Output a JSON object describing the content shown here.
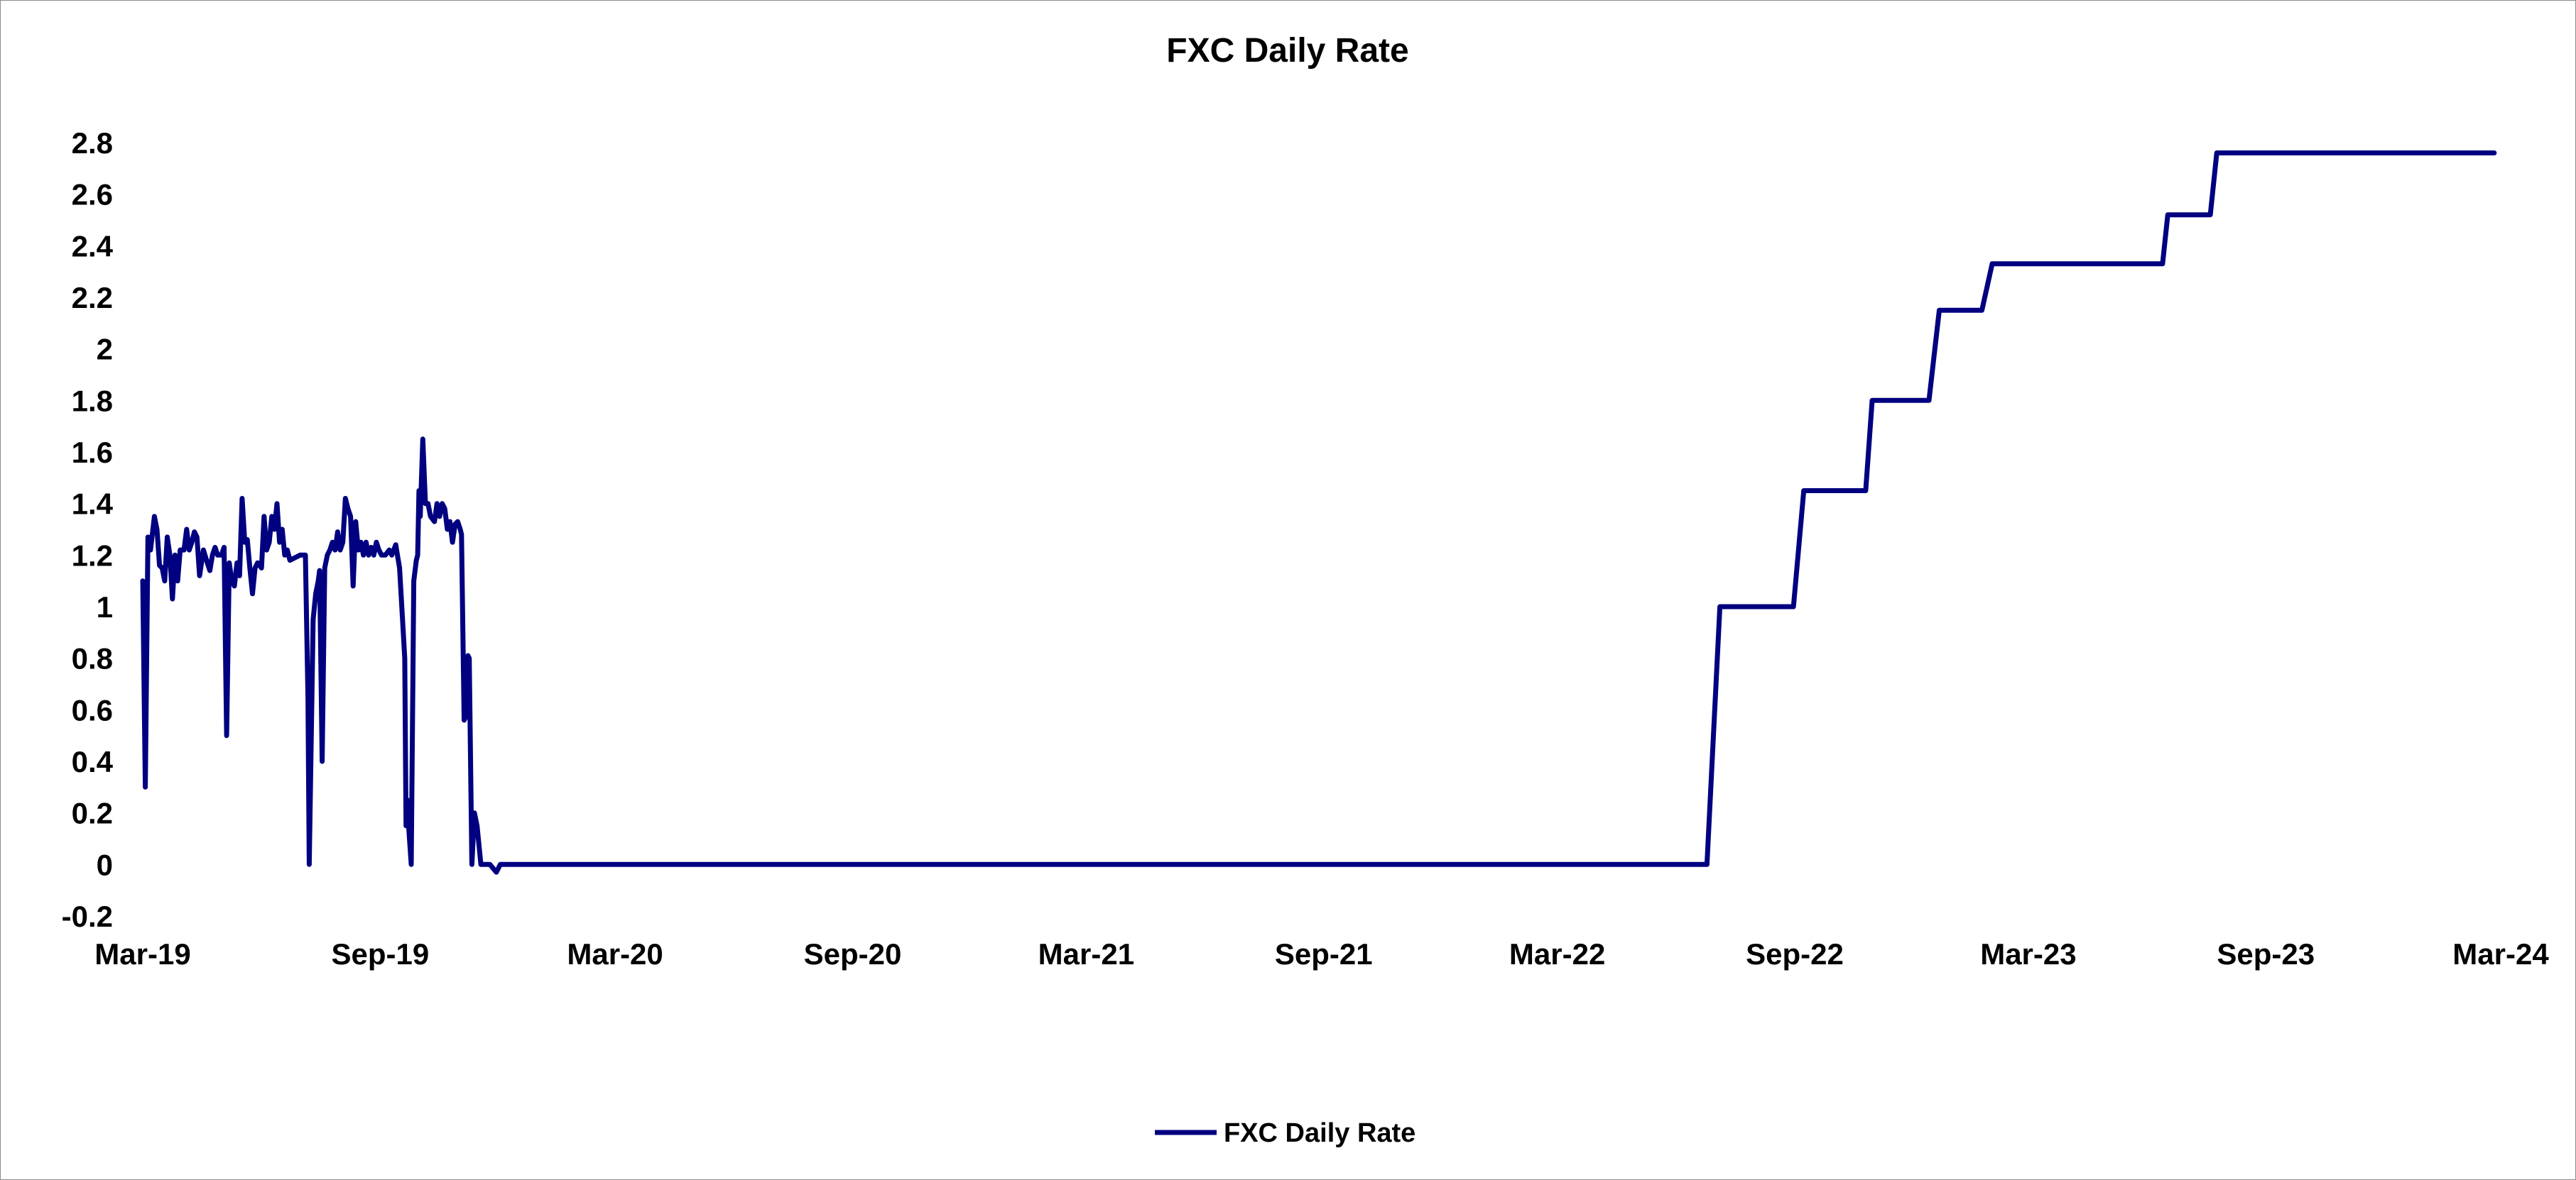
{
  "chart_data": {
    "type": "line",
    "title": "FXC Daily Rate",
    "xlabel": "",
    "ylabel": "",
    "x_axis": {
      "type": "date",
      "range": [
        "2019-03-01",
        "2024-03-01"
      ],
      "tick_labels": [
        "Mar-19",
        "Sep-19",
        "Mar-20",
        "Sep-20",
        "Mar-21",
        "Sep-21",
        "Mar-22",
        "Sep-22",
        "Mar-23",
        "Sep-23",
        "Mar-24"
      ],
      "tick_dates": [
        "2019-03-01",
        "2019-09-01",
        "2020-03-01",
        "2020-09-01",
        "2021-03-01",
        "2021-09-01",
        "2022-03-01",
        "2022-09-01",
        "2023-03-01",
        "2023-09-01",
        "2024-03-01"
      ]
    },
    "y_axis": {
      "range": [
        -0.2,
        2.8
      ],
      "tick_labels": [
        "-0.2",
        "0",
        "0.2",
        "0.4",
        "0.6",
        "0.8",
        "1",
        "1.2",
        "1.4",
        "1.6",
        "1.8",
        "2",
        "2.2",
        "2.4",
        "2.6",
        "2.8"
      ],
      "tick_values": [
        -0.2,
        0,
        0.2,
        0.4,
        0.6,
        0.8,
        1,
        1.2,
        1.4,
        1.6,
        1.8,
        2,
        2.2,
        2.4,
        2.6,
        2.8
      ]
    },
    "grid": false,
    "legend": {
      "position": "bottom-center"
    },
    "series": [
      {
        "name": "FXC Daily Rate",
        "color": "#000080",
        "points": [
          [
            "2019-03-01",
            1.1
          ],
          [
            "2019-03-03",
            0.3
          ],
          [
            "2019-03-05",
            1.27
          ],
          [
            "2019-03-07",
            1.22
          ],
          [
            "2019-03-10",
            1.35
          ],
          [
            "2019-03-12",
            1.3
          ],
          [
            "2019-03-14",
            1.16
          ],
          [
            "2019-03-16",
            1.15
          ],
          [
            "2019-03-18",
            1.1
          ],
          [
            "2019-03-20",
            1.27
          ],
          [
            "2019-03-22",
            1.2
          ],
          [
            "2019-03-24",
            1.03
          ],
          [
            "2019-03-26",
            1.2
          ],
          [
            "2019-03-28",
            1.1
          ],
          [
            "2019-03-30",
            1.22
          ],
          [
            "2019-04-02",
            1.22
          ],
          [
            "2019-04-04",
            1.3
          ],
          [
            "2019-04-06",
            1.22
          ],
          [
            "2019-04-08",
            1.25
          ],
          [
            "2019-04-10",
            1.29
          ],
          [
            "2019-04-12",
            1.27
          ],
          [
            "2019-04-14",
            1.12
          ],
          [
            "2019-04-17",
            1.22
          ],
          [
            "2019-04-20",
            1.17
          ],
          [
            "2019-04-22",
            1.14
          ],
          [
            "2019-04-24",
            1.2
          ],
          [
            "2019-04-26",
            1.23
          ],
          [
            "2019-04-28",
            1.2
          ],
          [
            "2019-05-01",
            1.2
          ],
          [
            "2019-05-03",
            1.23
          ],
          [
            "2019-05-05",
            0.5
          ],
          [
            "2019-05-07",
            1.17
          ],
          [
            "2019-05-09",
            1.1
          ],
          [
            "2019-05-11",
            1.08
          ],
          [
            "2019-05-13",
            1.17
          ],
          [
            "2019-05-15",
            1.12
          ],
          [
            "2019-05-17",
            1.42
          ],
          [
            "2019-05-19",
            1.25
          ],
          [
            "2019-05-21",
            1.26
          ],
          [
            "2019-05-23",
            1.15
          ],
          [
            "2019-05-25",
            1.05
          ],
          [
            "2019-05-27",
            1.15
          ],
          [
            "2019-05-29",
            1.17
          ],
          [
            "2019-06-01",
            1.15
          ],
          [
            "2019-06-03",
            1.35
          ],
          [
            "2019-06-05",
            1.22
          ],
          [
            "2019-06-07",
            1.25
          ],
          [
            "2019-06-09",
            1.35
          ],
          [
            "2019-06-11",
            1.3
          ],
          [
            "2019-06-13",
            1.4
          ],
          [
            "2019-06-15",
            1.25
          ],
          [
            "2019-06-17",
            1.3
          ],
          [
            "2019-06-19",
            1.2
          ],
          [
            "2019-06-21",
            1.22
          ],
          [
            "2019-06-23",
            1.18
          ],
          [
            "2019-07-01",
            1.2
          ],
          [
            "2019-07-05",
            1.2
          ],
          [
            "2019-07-07",
            0.65
          ],
          [
            "2019-07-08",
            0.0
          ],
          [
            "2019-07-11",
            0.95
          ],
          [
            "2019-07-13",
            1.05
          ],
          [
            "2019-07-15",
            1.1
          ],
          [
            "2019-07-16",
            1.14
          ],
          [
            "2019-07-18",
            0.4
          ],
          [
            "2019-07-20",
            1.15
          ],
          [
            "2019-07-22",
            1.2
          ],
          [
            "2019-07-24",
            1.22
          ],
          [
            "2019-07-26",
            1.25
          ],
          [
            "2019-07-28",
            1.22
          ],
          [
            "2019-07-30",
            1.29
          ],
          [
            "2019-08-01",
            1.22
          ],
          [
            "2019-08-03",
            1.25
          ],
          [
            "2019-08-05",
            1.42
          ],
          [
            "2019-08-07",
            1.38
          ],
          [
            "2019-08-09",
            1.35
          ],
          [
            "2019-08-11",
            1.08
          ],
          [
            "2019-08-13",
            1.33
          ],
          [
            "2019-08-15",
            1.22
          ],
          [
            "2019-08-17",
            1.25
          ],
          [
            "2019-08-19",
            1.2
          ],
          [
            "2019-08-21",
            1.25
          ],
          [
            "2019-08-23",
            1.2
          ],
          [
            "2019-08-25",
            1.23
          ],
          [
            "2019-08-27",
            1.2
          ],
          [
            "2019-08-29",
            1.25
          ],
          [
            "2019-08-31",
            1.22
          ],
          [
            "2019-09-02",
            1.2
          ],
          [
            "2019-09-05",
            1.2
          ],
          [
            "2019-09-08",
            1.22
          ],
          [
            "2019-09-10",
            1.2
          ],
          [
            "2019-09-13",
            1.24
          ],
          [
            "2019-09-16",
            1.15
          ],
          [
            "2019-09-20",
            0.8
          ],
          [
            "2019-09-21",
            0.15
          ],
          [
            "2019-09-22",
            0.25
          ],
          [
            "2019-09-23",
            0.15
          ],
          [
            "2019-09-25",
            0.0
          ],
          [
            "2019-09-27",
            1.1
          ],
          [
            "2019-09-29",
            1.18
          ],
          [
            "2019-09-30",
            1.2
          ],
          [
            "2019-10-01",
            1.45
          ],
          [
            "2019-10-02",
            1.35
          ],
          [
            "2019-10-04",
            1.65
          ],
          [
            "2019-10-06",
            1.4
          ],
          [
            "2019-10-08",
            1.4
          ],
          [
            "2019-10-10",
            1.35
          ],
          [
            "2019-10-13",
            1.33
          ],
          [
            "2019-10-15",
            1.4
          ],
          [
            "2019-10-17",
            1.35
          ],
          [
            "2019-10-19",
            1.4
          ],
          [
            "2019-10-21",
            1.38
          ],
          [
            "2019-10-23",
            1.3
          ],
          [
            "2019-10-25",
            1.33
          ],
          [
            "2019-10-27",
            1.25
          ],
          [
            "2019-10-29",
            1.32
          ],
          [
            "2019-10-31",
            1.33
          ],
          [
            "2019-11-02",
            1.3
          ],
          [
            "2019-11-03",
            1.28
          ],
          [
            "2019-11-05",
            0.56
          ],
          [
            "2019-11-07",
            0.58
          ],
          [
            "2019-11-08",
            0.81
          ],
          [
            "2019-11-09",
            0.8
          ],
          [
            "2019-11-11",
            0.0
          ],
          [
            "2019-11-13",
            0.2
          ],
          [
            "2019-11-15",
            0.15
          ],
          [
            "2019-11-18",
            0.0
          ],
          [
            "2019-11-25",
            0.0
          ],
          [
            "2019-11-30",
            -0.03
          ],
          [
            "2019-12-03",
            0.0
          ],
          [
            "2022-06-25",
            0.0
          ],
          [
            "2022-07-05",
            1.0
          ],
          [
            "2022-08-31",
            1.0
          ],
          [
            "2022-09-08",
            1.45
          ],
          [
            "2022-10-26",
            1.45
          ],
          [
            "2022-10-31",
            1.8
          ],
          [
            "2022-12-14",
            1.8
          ],
          [
            "2022-12-22",
            2.15
          ],
          [
            "2023-01-24",
            2.15
          ],
          [
            "2023-02-01",
            2.33
          ],
          [
            "2023-06-13",
            2.33
          ],
          [
            "2023-06-17",
            2.52
          ],
          [
            "2023-07-20",
            2.52
          ],
          [
            "2023-07-25",
            2.76
          ],
          [
            "2024-02-25",
            2.76
          ]
        ]
      }
    ]
  }
}
